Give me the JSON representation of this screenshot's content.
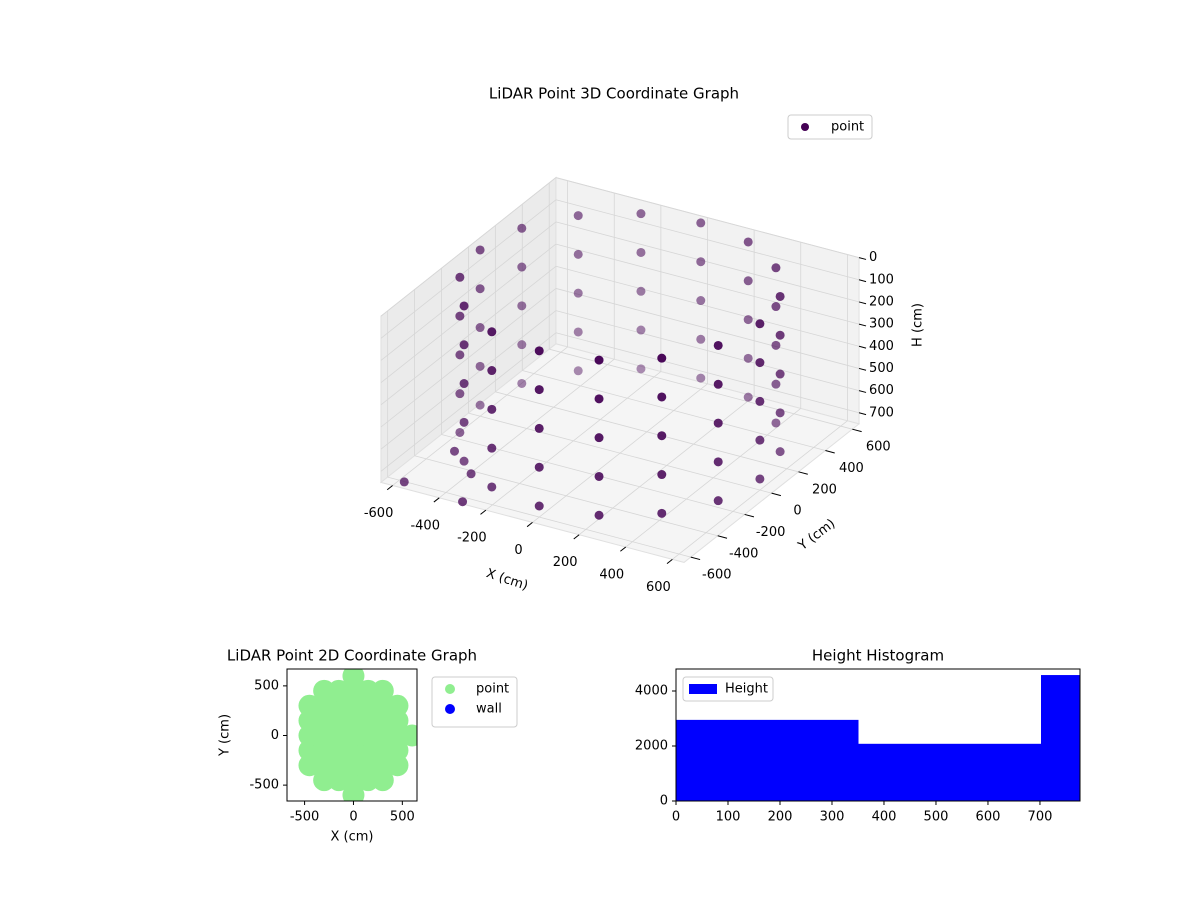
{
  "chart_data": [
    {
      "type": "scatter3d",
      "title": "LiDAR Point 3D Coordinate Graph",
      "xlabel": "X (cm)",
      "ylabel": "Y (cm)",
      "zlabel": "H (cm)",
      "xlim": [
        -650,
        650
      ],
      "ylim": [
        -650,
        650
      ],
      "zlim": [
        750,
        0
      ],
      "xticks": [
        -600,
        -400,
        -200,
        0,
        200,
        400,
        600
      ],
      "yticks": [
        -600,
        -400,
        -200,
        0,
        200,
        400,
        600
      ],
      "zticks": [
        0,
        100,
        200,
        300,
        400,
        500,
        600,
        700
      ],
      "legend": "upper right",
      "series": [
        {
          "name": "point",
          "color": "#440154",
          "x": [
            600,
            554,
            424,
            230,
            0,
            -230,
            -424,
            -554,
            -600,
            -554,
            -424,
            -230,
            0,
            230,
            424,
            554,
            600,
            554,
            424,
            230,
            0,
            -230,
            -424,
            -554,
            -600,
            -554,
            -424,
            -230,
            0,
            230,
            424,
            554,
            600,
            554,
            424,
            230,
            0,
            -230,
            -424,
            -554,
            -600,
            -554,
            -424,
            -230,
            0,
            230,
            424,
            554,
            600,
            554,
            424,
            230,
            0,
            -230,
            -424,
            -554,
            -600,
            -554,
            -424,
            -230,
            0,
            230,
            424,
            554,
            600,
            554,
            424,
            230,
            0,
            -230,
            -424,
            -554,
            -600,
            -554,
            -424,
            -230,
            0,
            230,
            424,
            554,
            -550,
            -300,
            -350,
            -450
          ],
          "y": [
            0,
            230,
            424,
            554,
            600,
            554,
            424,
            230,
            0,
            -230,
            -424,
            -554,
            -600,
            -554,
            -424,
            -230,
            0,
            230,
            424,
            554,
            600,
            554,
            424,
            230,
            0,
            -230,
            -424,
            -554,
            -600,
            -554,
            -424,
            -230,
            0,
            230,
            424,
            554,
            600,
            554,
            424,
            230,
            0,
            -230,
            -424,
            -554,
            -600,
            -554,
            -424,
            -230,
            0,
            230,
            424,
            554,
            600,
            554,
            424,
            230,
            0,
            -230,
            -424,
            -554,
            -600,
            -554,
            -424,
            -230,
            0,
            230,
            424,
            554,
            600,
            554,
            424,
            230,
            0,
            -230,
            -424,
            -554,
            -600,
            -554,
            -424,
            -230,
            -650,
            -650,
            -500,
            -450
          ],
          "h": [
            0,
            0,
            0,
            0,
            0,
            0,
            0,
            0,
            0,
            0,
            0,
            0,
            0,
            0,
            0,
            0,
            175,
            175,
            175,
            175,
            175,
            175,
            175,
            175,
            175,
            175,
            175,
            175,
            175,
            175,
            175,
            175,
            350,
            350,
            350,
            350,
            350,
            350,
            350,
            350,
            350,
            350,
            350,
            350,
            350,
            350,
            350,
            350,
            525,
            525,
            525,
            525,
            525,
            525,
            525,
            525,
            525,
            525,
            525,
            525,
            525,
            525,
            525,
            525,
            700,
            700,
            700,
            700,
            700,
            700,
            700,
            700,
            700,
            700,
            700,
            700,
            700,
            700,
            700,
            700,
            720,
            740,
            700,
            650
          ]
        }
      ]
    },
    {
      "type": "scatter",
      "title": "LiDAR Point 2D Coordinate Graph",
      "xlabel": "X (cm)",
      "ylabel": "Y (cm)",
      "xlim": [
        -680,
        650
      ],
      "ylim": [
        -660,
        670
      ],
      "xticks": [
        -500,
        0,
        500
      ],
      "yticks": [
        -500,
        0,
        500
      ],
      "legend": "outside",
      "series": [
        {
          "name": "point",
          "color": "#90ee90",
          "x": [
            -450,
            -450,
            -450,
            -450,
            -450,
            -300,
            -300,
            -300,
            -300,
            -300,
            -300,
            -300,
            -150,
            -150,
            -150,
            -150,
            -150,
            -150,
            -150,
            0,
            0,
            0,
            0,
            0,
            0,
            0,
            0,
            0,
            150,
            150,
            150,
            150,
            150,
            150,
            150,
            300,
            300,
            300,
            300,
            300,
            300,
            300,
            450,
            450,
            450,
            450,
            450,
            600
          ],
          "y": [
            -300,
            -150,
            0,
            150,
            300,
            -450,
            -300,
            -150,
            0,
            150,
            300,
            450,
            -450,
            -300,
            -150,
            0,
            150,
            300,
            450,
            -600,
            -450,
            -300,
            -150,
            0,
            150,
            300,
            450,
            600,
            -450,
            -300,
            -150,
            0,
            150,
            300,
            450,
            -450,
            -300,
            -150,
            0,
            150,
            300,
            450,
            -300,
            -150,
            0,
            150,
            300,
            0
          ]
        },
        {
          "name": "wall",
          "color": "#0000ff",
          "x": [],
          "y": []
        }
      ]
    },
    {
      "type": "histogram",
      "title": "Height Histogram",
      "bins": [
        0,
        351,
        702,
        1053
      ],
      "series": [
        {
          "name": "Height",
          "color": "#0000ff",
          "values": [
            2950,
            2080,
            4580
          ]
        }
      ],
      "xlim": [
        0,
        777
      ],
      "ylim": [
        0,
        4800
      ],
      "xticks": [
        0,
        100,
        200,
        300,
        400,
        500,
        600,
        700
      ],
      "yticks": [
        0,
        2000,
        4000
      ],
      "legend": "upper left"
    }
  ]
}
